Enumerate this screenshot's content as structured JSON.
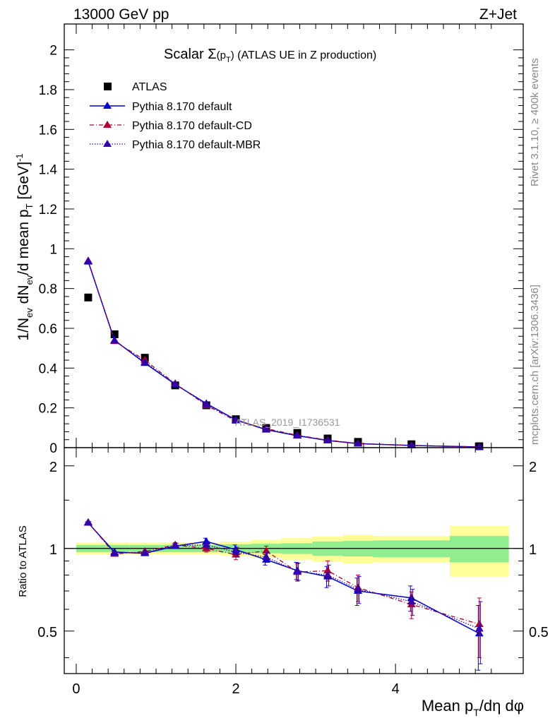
{
  "header": {
    "left": "13000 GeV pp",
    "right": "Z+Jet"
  },
  "side_labels": {
    "rivet": "Rivet 3.1.10, ≥ 400k events",
    "mcplots": "mcplots.cern.ch [arXiv:1306.3436]"
  },
  "chart_data": [
    {
      "type": "scatter",
      "panel": "main",
      "title": "Scalar Σ(p_T) (ATLAS UE in Z production)",
      "title_parts": {
        "pre": "Scalar ",
        "sigma": "Σ",
        "paren_open": "(p",
        "sub": "T",
        "paren_close": ")",
        "post": " (ATLAS UE in Z production)"
      },
      "watermark": "ATLAS_2019_I1736531",
      "xlabel": "Mean p_T/dη dφ",
      "xlabel_parts": {
        "pre": "Mean p",
        "sub": "T",
        "post": "/dη dφ"
      },
      "ylabel": "1/N_ev dN_ev/d mean p_T [GeV]^-1",
      "ylabel_parts": {
        "a": "1/N",
        "a_sub": "ev",
        "b": " dN",
        "b_sub": "ev",
        "c": "/d mean p",
        "c_sub": "T",
        "d": " [GeV]",
        "d_sup": "-1"
      },
      "xlim": [
        -0.15,
        5.6
      ],
      "ylim": [
        0,
        2.13
      ],
      "yticks": [
        0,
        0.2,
        0.4,
        0.6,
        0.8,
        1,
        1.2,
        1.4,
        1.6,
        1.8,
        2
      ],
      "ytick_labels": [
        "0",
        "0.2",
        "0.4",
        "0.6",
        "0.8",
        "1",
        "1.2",
        "1.4",
        "1.6",
        "1.8",
        "2"
      ],
      "x": [
        0.15,
        0.48,
        0.86,
        1.24,
        1.63,
        2.0,
        2.38,
        2.77,
        3.15,
        3.53,
        4.2,
        5.05
      ],
      "legend_position": "top-left",
      "series": [
        {
          "name": "ATLAS",
          "style": "square",
          "color": "#000000",
          "values": [
            0.755,
            0.57,
            0.452,
            0.313,
            0.213,
            0.143,
            0.099,
            0.074,
            0.046,
            0.029,
            0.017,
            0.007
          ]
        },
        {
          "name": "Pythia 8.170 default",
          "style": "solid",
          "color": "#0000cc",
          "values": [
            0.935,
            0.54,
            0.425,
            0.318,
            0.222,
            0.14,
            0.09,
            0.06,
            0.036,
            0.02,
            0.011,
            0.0035
          ]
        },
        {
          "name": "Pythia 8.170 default-CD",
          "style": "dashdot",
          "color": "#aa0033",
          "values": [
            0.94,
            0.535,
            0.44,
            0.322,
            0.213,
            0.135,
            0.096,
            0.062,
            0.038,
            0.021,
            0.0105,
            0.0037
          ]
        },
        {
          "name": "Pythia 8.170 default-MBR",
          "style": "dotted",
          "color": "#3300aa",
          "values": [
            0.938,
            0.538,
            0.43,
            0.32,
            0.218,
            0.138,
            0.092,
            0.061,
            0.037,
            0.0205,
            0.0108,
            0.0036
          ]
        }
      ]
    },
    {
      "type": "line",
      "panel": "ratio",
      "ylabel": "Ratio to ATLAS",
      "xlim": [
        -0.15,
        5.6
      ],
      "ylim": [
        0.35,
        2.33
      ],
      "xticks": [
        0,
        2,
        4
      ],
      "xtick_labels": [
        "0",
        "2",
        "4"
      ],
      "yticks": [
        0.5,
        1,
        2
      ],
      "ytick_labels": [
        "0.5",
        "1",
        "2"
      ],
      "x": [
        0.15,
        0.48,
        0.86,
        1.24,
        1.63,
        2.0,
        2.38,
        2.77,
        3.15,
        3.53,
        4.2,
        5.05
      ],
      "bands": {
        "bin_edges": [
          0.0,
          0.3,
          0.67,
          1.05,
          1.43,
          1.81,
          2.19,
          2.57,
          2.96,
          3.34,
          3.72,
          4.68,
          5.42
        ],
        "stat": [
          0.03,
          0.03,
          0.03,
          0.03,
          0.03,
          0.035,
          0.04,
          0.045,
          0.06,
          0.065,
          0.07,
          0.11
        ],
        "total": [
          0.05,
          0.05,
          0.05,
          0.05,
          0.05,
          0.06,
          0.075,
          0.09,
          0.105,
          0.12,
          0.11,
          0.21
        ]
      },
      "series": [
        {
          "name": "Pythia 8.170 default",
          "color": "#0000cc",
          "values": [
            1.24,
            0.97,
            0.96,
            1.02,
            1.06,
            0.99,
            0.91,
            0.83,
            0.79,
            0.7,
            0.66,
            0.49
          ],
          "errors": [
            0.01,
            0.01,
            0.01,
            0.02,
            0.03,
            0.04,
            0.04,
            0.06,
            0.07,
            0.08,
            0.07,
            0.13
          ]
        },
        {
          "name": "Pythia 8.170 default-CD",
          "color": "#aa0033",
          "values": [
            1.245,
            0.955,
            0.975,
            1.03,
            1.0,
            0.95,
            0.98,
            0.82,
            0.83,
            0.72,
            0.625,
            0.53
          ],
          "errors": [
            0.01,
            0.01,
            0.01,
            0.02,
            0.03,
            0.04,
            0.04,
            0.06,
            0.07,
            0.08,
            0.07,
            0.13
          ]
        },
        {
          "name": "Pythia 8.170 default-MBR",
          "color": "#3300aa",
          "values": [
            1.242,
            0.963,
            0.965,
            1.025,
            1.03,
            0.97,
            0.93,
            0.825,
            0.8,
            0.71,
            0.64,
            0.51
          ],
          "errors": [
            0.01,
            0.01,
            0.01,
            0.02,
            0.03,
            0.04,
            0.04,
            0.06,
            0.07,
            0.08,
            0.07,
            0.13
          ]
        }
      ]
    }
  ],
  "colors": {
    "band_stat": "#90ee90",
    "band_total": "#ffff99",
    "reference_line": "#000000"
  }
}
